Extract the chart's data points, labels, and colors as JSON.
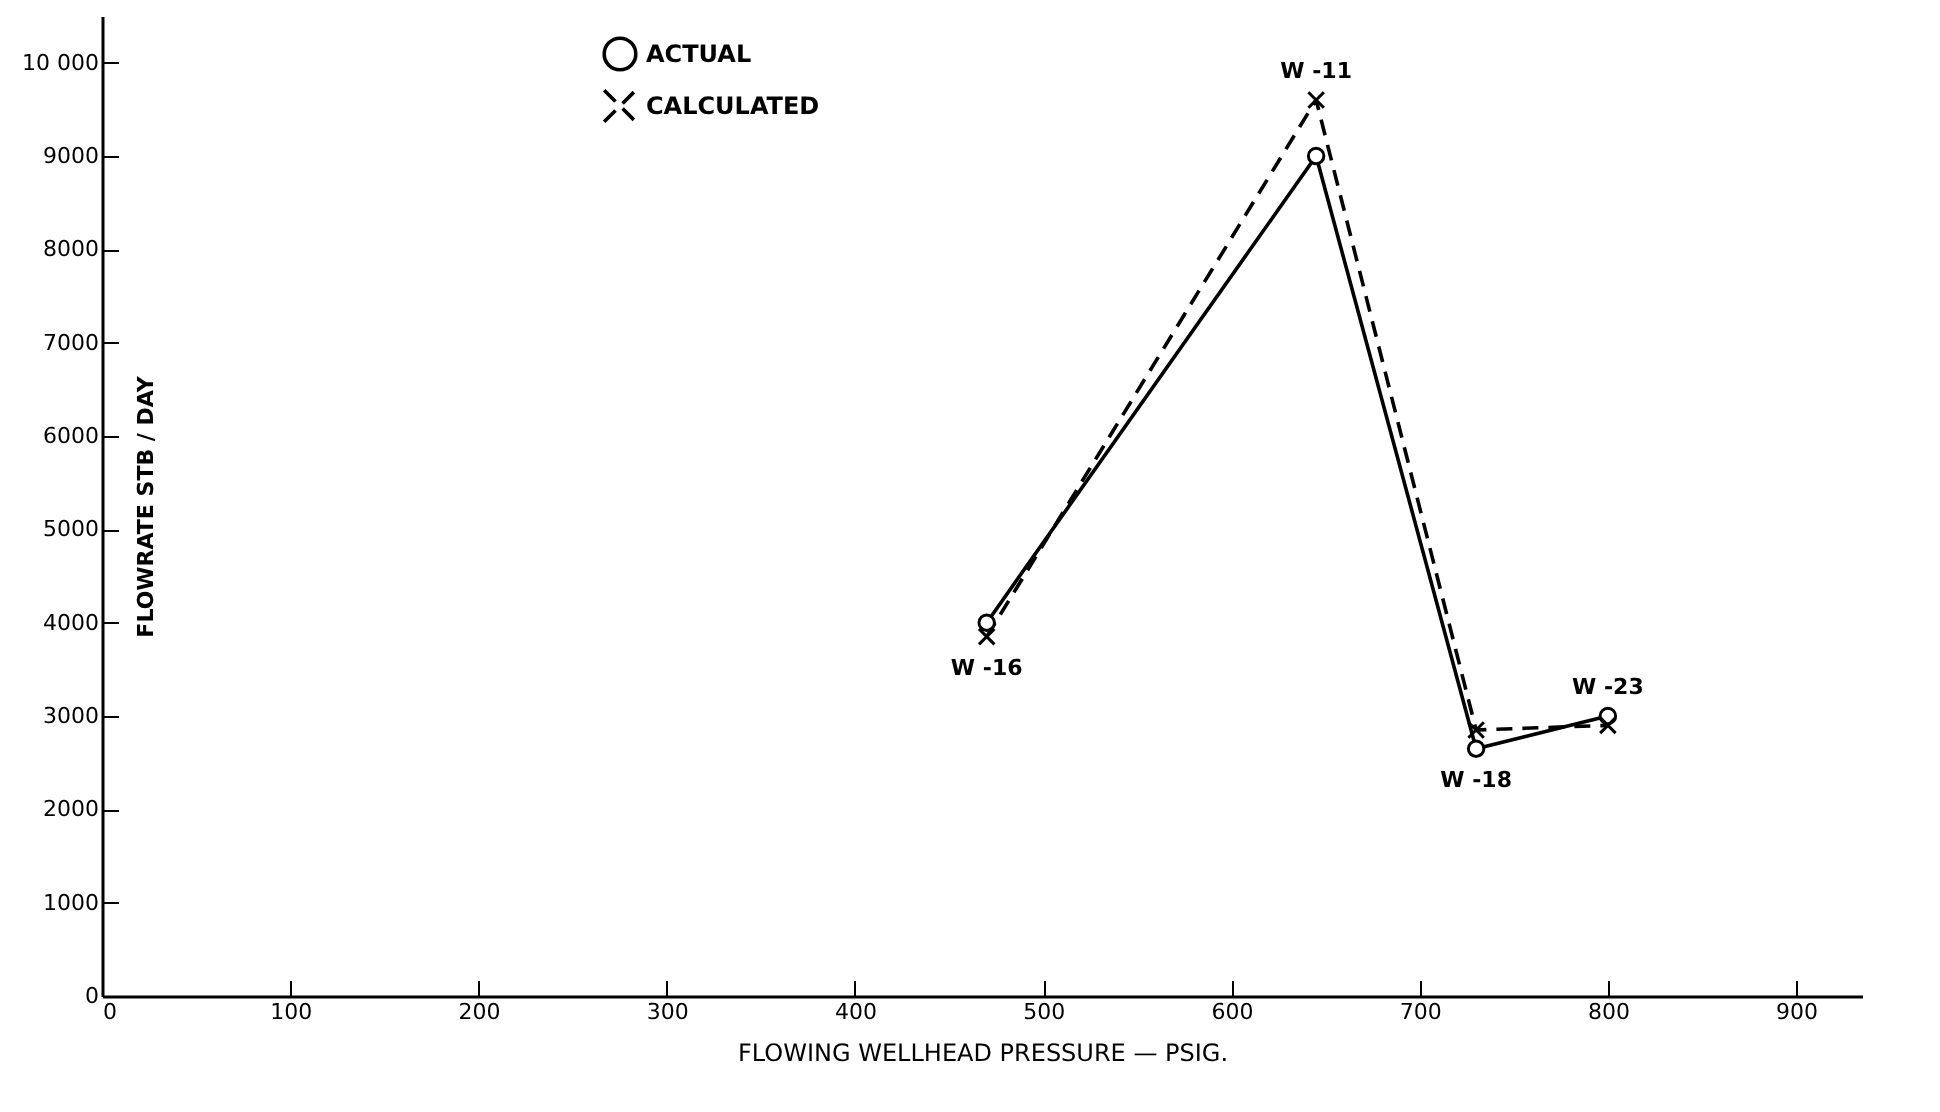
{
  "chart_data": {
    "type": "line",
    "xlabel": "FLOWING  WELLHEAD  PRESSURE — PSIG.",
    "ylabel": "FLOWRATE STB / DAY",
    "x": [
      470,
      645,
      730,
      800
    ],
    "series": [
      {
        "name": "ACTUAL",
        "color": "#000000",
        "values": [
          4000,
          9000,
          2650,
          3000
        ],
        "marker": "circle",
        "line_style": "solid"
      },
      {
        "name": "CALCULATED",
        "color": "#000000",
        "values": [
          3850,
          9600,
          2850,
          2900
        ],
        "marker": "cross",
        "line_style": "dashed"
      }
    ],
    "xlim": [
      0,
      935
    ],
    "xticks": [
      0,
      100,
      200,
      300,
      400,
      500,
      600,
      700,
      800,
      900
    ],
    "ylim": [
      0,
      10500
    ],
    "yticks": [
      0,
      1000,
      2000,
      3000,
      4000,
      5000,
      6000,
      7000,
      8000,
      9000,
      {
        "value": 10000,
        "label": "10 000"
      }
    ],
    "annotations": [
      {
        "text": "W -16",
        "x": 470,
        "y": 3850
      },
      {
        "text": "W -11",
        "x": 645,
        "y": 9600
      },
      {
        "text": "W -18",
        "x": 730,
        "y": 2650
      },
      {
        "text": "W -23",
        "x": 800,
        "y": 3000
      }
    ],
    "grid": false,
    "legend": "top"
  }
}
